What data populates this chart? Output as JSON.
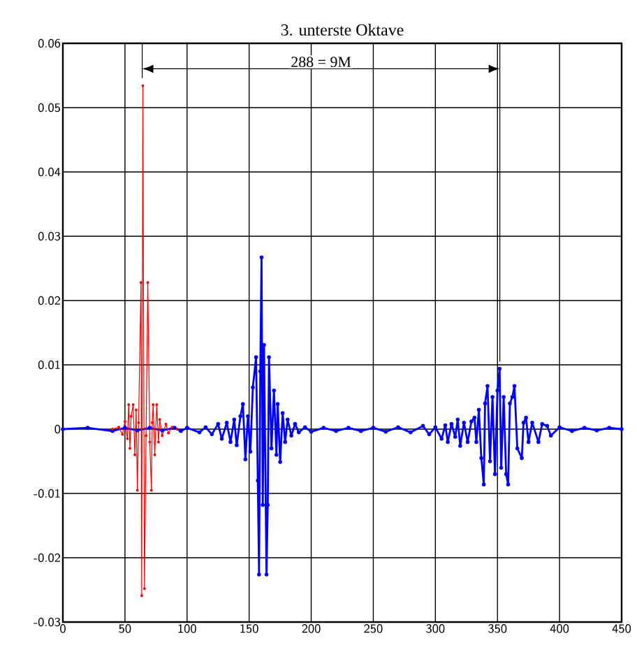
{
  "chart_data": {
    "type": "line",
    "title": "3. unterste Oktave",
    "xlim": [
      0,
      450
    ],
    "ylim": [
      -0.03,
      0.06
    ],
    "xticks": [
      0,
      50,
      100,
      150,
      200,
      250,
      300,
      350,
      400,
      450
    ],
    "yticks": [
      -0.03,
      -0.02,
      -0.01,
      0,
      0.01,
      0.02,
      0.03,
      0.04,
      0.05,
      0.06
    ],
    "grid": true,
    "marker": "circle",
    "line_style": "solid",
    "annotations": [
      "288 = 9M"
    ],
    "series": [
      {
        "color": "#0000ff",
        "x": [
          0,
          20,
          40,
          50,
          60,
          70,
          80,
          90,
          95,
          100,
          110,
          115,
          120,
          125,
          128,
          132,
          135,
          138,
          140,
          143,
          145,
          147,
          149,
          151,
          153,
          155.6,
          157,
          158,
          159,
          160,
          161,
          162,
          164,
          165,
          166,
          168,
          170,
          172,
          173,
          175,
          177,
          179,
          181,
          184,
          187,
          190,
          195,
          200,
          210,
          220,
          230,
          240,
          250,
          260,
          270,
          280,
          290,
          295,
          300,
          305,
          308,
          310,
          313,
          316,
          318,
          320,
          323,
          326,
          329,
          331.5,
          333,
          335,
          337,
          339,
          340,
          342,
          344,
          346,
          348,
          350,
          351.7,
          353,
          355,
          357,
          358.6,
          360,
          362,
          363.7,
          366,
          369.6,
          371,
          373,
          375,
          378,
          383,
          386,
          390,
          393,
          400,
          410,
          420,
          430,
          440,
          450
        ],
        "values": [
          0,
          0.0002,
          -0.0003,
          0.0002,
          -0.0002,
          0.0002,
          -0.0002,
          0.0002,
          -0.0003,
          0.0002,
          -0.0005,
          0.0003,
          -0.0008,
          0.0008,
          -0.0015,
          0.001,
          -0.002,
          0.0015,
          -0.0025,
          0.002,
          0.0039,
          -0.0047,
          0.002,
          -0.0035,
          0.0065,
          0.0112,
          -0.008,
          -0.0226,
          0.009,
          0.0267,
          -0.0118,
          0.0131,
          -0.0226,
          -0.0118,
          0.0112,
          -0.003,
          0.006,
          -0.004,
          0.0039,
          -0.0051,
          0.0025,
          -0.002,
          0.0015,
          -0.001,
          0.0008,
          -0.0005,
          0.0003,
          -0.0004,
          0.0002,
          -0.0003,
          0.0002,
          -0.0003,
          0.0002,
          -0.0004,
          0.0003,
          -0.0005,
          0.0005,
          -0.0008,
          0.0003,
          -0.0015,
          0.0006,
          -0.002,
          0.0008,
          -0.0012,
          0.0015,
          -0.0026,
          0.001,
          -0.002,
          0.0012,
          0.0018,
          -0.002,
          0.003,
          -0.0045,
          -0.0086,
          0.004,
          0.0067,
          -0.005,
          0.005,
          -0.007,
          0.006,
          0.0094,
          -0.006,
          0.005,
          -0.007,
          -0.0086,
          0.004,
          0.005,
          0.0067,
          -0.003,
          -0.0045,
          0.001,
          0.0018,
          -0.002,
          0.001,
          -0.002,
          0.0008,
          0.0005,
          -0.001,
          0.0003,
          -0.0003,
          0.0002,
          -0.0002,
          0.0002,
          0
        ]
      },
      {
        "color": "#ff0000",
        "x": [
          40,
          45,
          48,
          50,
          52,
          53,
          54,
          55,
          56.6,
          58,
          59,
          60,
          61,
          62.9,
          63.5,
          64.4,
          65.7,
          67,
          68.4,
          70,
          71.3,
          72,
          72.7,
          74,
          75.6,
          77,
          78,
          80,
          83,
          85,
          88,
          92
        ],
        "values": [
          0,
          0.0003,
          -0.0008,
          0.0012,
          -0.0015,
          0.0038,
          -0.003,
          0.002,
          0.0038,
          -0.004,
          0.003,
          -0.0095,
          0.001,
          0.0228,
          -0.0259,
          0.0534,
          -0.0248,
          -0.001,
          0.0228,
          -0.002,
          -0.0095,
          0.001,
          0.0038,
          -0.004,
          0.0038,
          -0.002,
          0.0015,
          -0.001,
          0.0008,
          -0.0006,
          0.0003,
          0
        ]
      }
    ]
  }
}
